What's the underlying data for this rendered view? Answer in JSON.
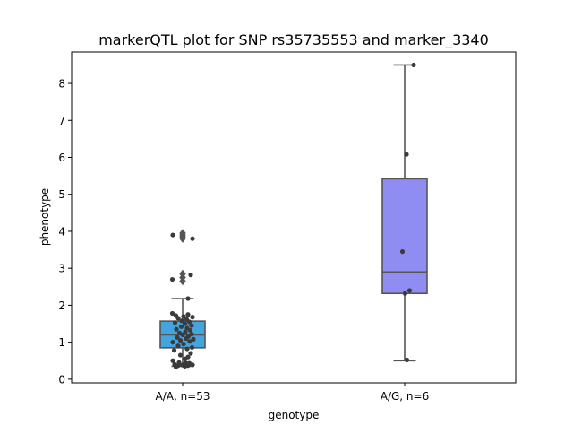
{
  "chart_data": {
    "type": "box",
    "title": "markerQTL plot for SNP rs35735553 and marker_3340",
    "xlabel": "genotype",
    "ylabel": "phenotype",
    "ylim": [
      -0.1,
      8.85
    ],
    "yticks": [
      0,
      1,
      2,
      3,
      4,
      5,
      6,
      7,
      8
    ],
    "grid": false,
    "categories": [
      "A/A, n=53",
      "A/G, n=6"
    ],
    "boxes": [
      {
        "category": "A/A, n=53",
        "color": "#42a5e0",
        "whisker_low": 0.35,
        "q1": 0.85,
        "median": 1.2,
        "q3": 1.57,
        "whisker_high": 2.18,
        "outliers": [
          2.65,
          2.75,
          2.85,
          3.8,
          3.85,
          3.9,
          3.95
        ],
        "points": [
          [
            0.33,
            0.35
          ],
          [
            0.35,
            0.55
          ],
          [
            0.37,
            0.4
          ],
          [
            0.38,
            0.5
          ],
          [
            0.39,
            0.72
          ],
          [
            0.4,
            0.32
          ],
          [
            0.42,
            0.55
          ],
          [
            0.43,
            0.65
          ],
          [
            0.44,
            0.57
          ],
          [
            0.45,
            0.42
          ],
          [
            0.5,
            0.28
          ],
          [
            0.55,
            0.55
          ],
          [
            0.6,
            0.62
          ],
          [
            0.65,
            0.45
          ],
          [
            0.7,
            0.68
          ],
          [
            0.78,
            0.31
          ],
          [
            0.82,
            0.6
          ],
          [
            0.86,
            0.71
          ],
          [
            0.9,
            0.4
          ],
          [
            0.95,
            0.52
          ],
          [
            1.0,
            0.28
          ],
          [
            1.02,
            0.66
          ],
          [
            1.05,
            0.45
          ],
          [
            1.08,
            0.74
          ],
          [
            1.1,
            0.58
          ],
          [
            1.13,
            0.38
          ],
          [
            1.16,
            0.63
          ],
          [
            1.2,
            0.5
          ],
          [
            1.22,
            0.7
          ],
          [
            1.25,
            0.43
          ],
          [
            1.28,
            0.56
          ],
          [
            1.32,
            0.67
          ],
          [
            1.35,
            0.36
          ],
          [
            1.38,
            0.6
          ],
          [
            1.42,
            0.47
          ],
          [
            1.45,
            0.7
          ],
          [
            1.5,
            0.55
          ],
          [
            1.53,
            0.33
          ],
          [
            1.55,
            0.65
          ],
          [
            1.58,
            0.48
          ],
          [
            1.62,
            0.59
          ],
          [
            1.65,
            0.4
          ],
          [
            1.68,
            0.72
          ],
          [
            1.7,
            0.52
          ],
          [
            1.72,
            0.35
          ],
          [
            1.75,
            0.62
          ],
          [
            1.78,
            0.27
          ],
          [
            2.18,
            0.62
          ],
          [
            2.7,
            0.27
          ],
          [
            2.82,
            0.68
          ],
          [
            3.8,
            0.72
          ],
          [
            3.9,
            0.28
          ],
          [
            0.37,
            0.62
          ]
        ]
      },
      {
        "category": "A/G, n=6",
        "color": "#8f8cf2",
        "whisker_low": 0.5,
        "q1": 2.32,
        "median": 2.9,
        "q3": 5.42,
        "whisker_high": 8.5,
        "outliers": [],
        "points": [
          [
            0.52,
            0.55
          ],
          [
            2.32,
            0.51
          ],
          [
            2.4,
            0.61
          ],
          [
            3.45,
            0.45
          ],
          [
            6.08,
            0.54
          ],
          [
            8.5,
            0.7
          ]
        ]
      }
    ]
  }
}
